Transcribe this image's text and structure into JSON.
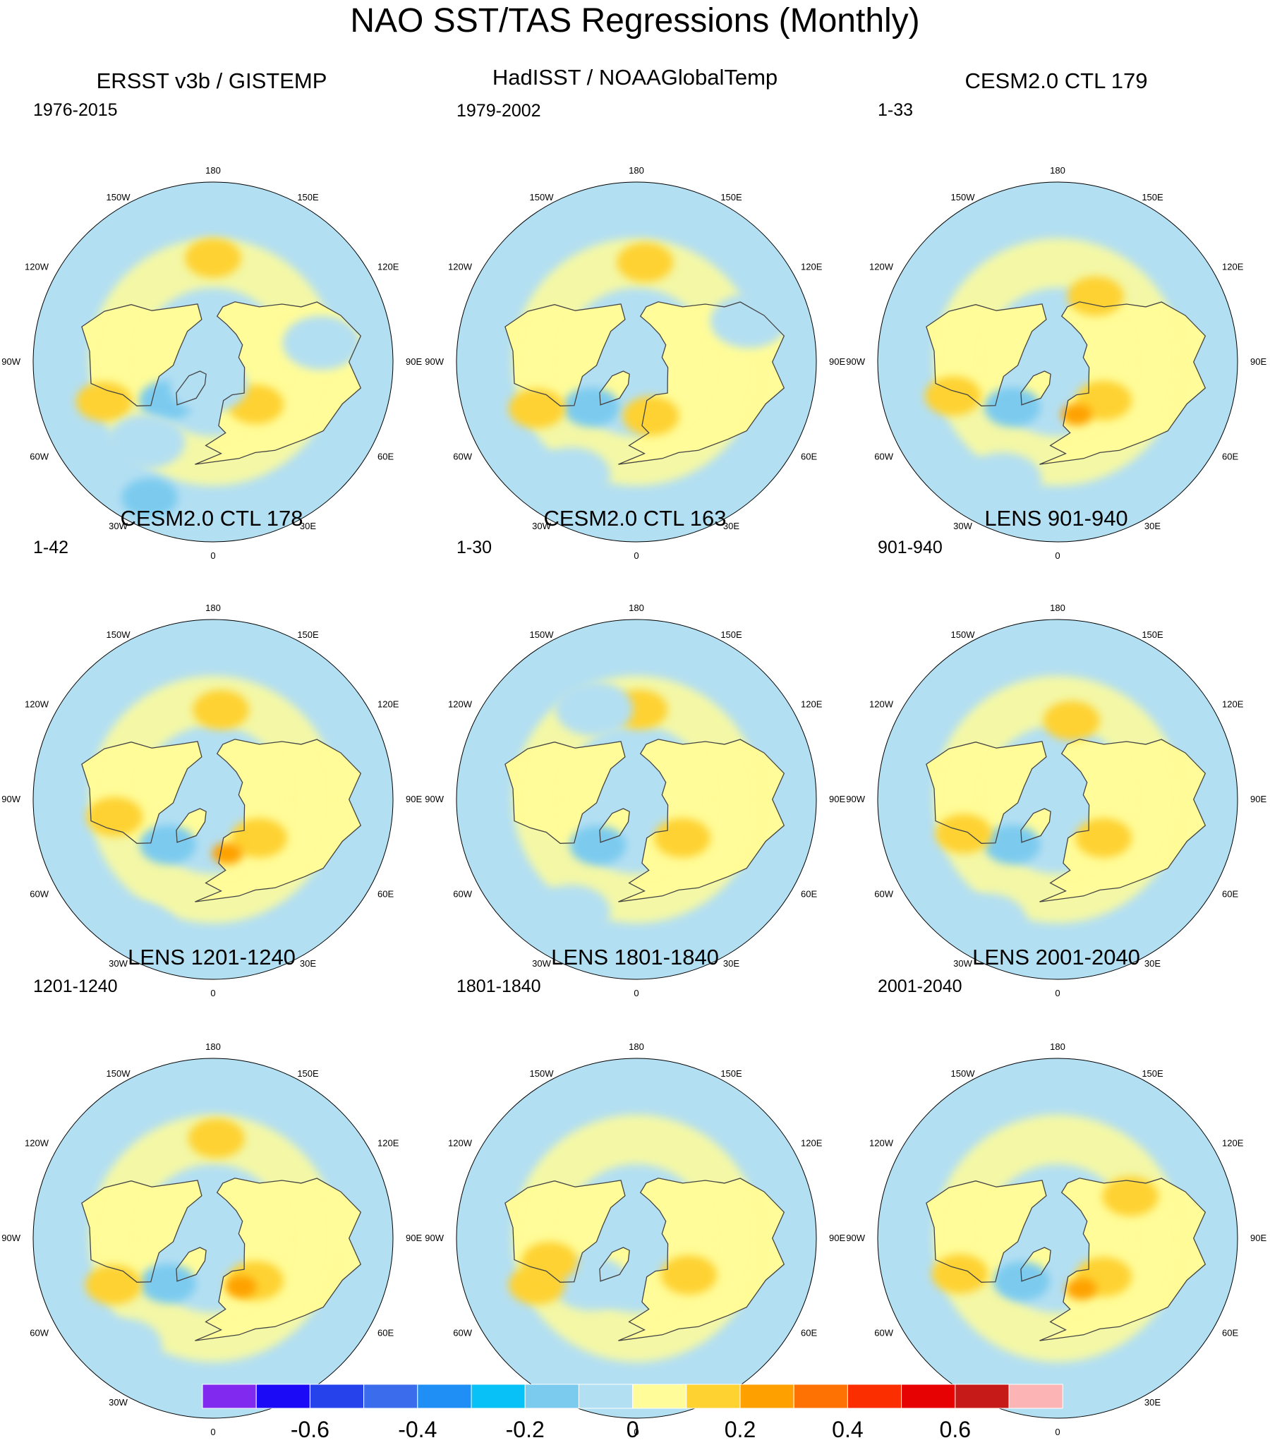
{
  "title": "NAO SST/TAS Regressions (Monthly)",
  "chart_data": [
    {
      "type": "heatmap",
      "projection": "north-polar-stereographic",
      "title": "ERSST v3b / GISTEMP",
      "period": "1976-2015",
      "anomalies": [
        {
          "sign": "warm",
          "strength": 1,
          "lon": 180,
          "lat": 38
        },
        {
          "sign": "cold",
          "strength": 1,
          "lon": -50,
          "lat": 60
        },
        {
          "sign": "warm",
          "strength": 1,
          "lon": -70,
          "lat": 32
        },
        {
          "sign": "warm",
          "strength": 1,
          "lon": 45,
          "lat": 60
        },
        {
          "sign": "cold",
          "strength": 1,
          "lon": -25,
          "lat": 15
        },
        {
          "sign": "cool",
          "strength": 0,
          "lon": -40,
          "lat": 38
        },
        {
          "sign": "cool",
          "strength": 0,
          "lon": 100,
          "lat": 35
        },
        {
          "sign": "cool",
          "strength": 0,
          "lon": -10,
          "lat": 78
        }
      ]
    },
    {
      "type": "heatmap",
      "projection": "north-polar-stereographic",
      "title": "HadISST / NOAAGlobalTemp",
      "period": "1979-2002",
      "anomalies": [
        {
          "sign": "warm",
          "strength": 1,
          "lon": 175,
          "lat": 40
        },
        {
          "sign": "cold",
          "strength": 1,
          "lon": -45,
          "lat": 58
        },
        {
          "sign": "warm",
          "strength": 1,
          "lon": -65,
          "lat": 35
        },
        {
          "sign": "warm",
          "strength": 1,
          "lon": 15,
          "lat": 62
        },
        {
          "sign": "cool",
          "strength": 0,
          "lon": -30,
          "lat": 25
        },
        {
          "sign": "cool",
          "strength": 0,
          "lon": 110,
          "lat": 30
        }
      ]
    },
    {
      "type": "heatmap",
      "projection": "north-polar-stereographic",
      "title": "CESM2.0 CTL 179",
      "period": "1-33",
      "anomalies": [
        {
          "sign": "warm",
          "strength": 1,
          "lon": 150,
          "lat": 52
        },
        {
          "sign": "cold",
          "strength": 1,
          "lon": -45,
          "lat": 58
        },
        {
          "sign": "warm",
          "strength": 1,
          "lon": -72,
          "lat": 35
        },
        {
          "sign": "warm",
          "strength": 1,
          "lon": 50,
          "lat": 60
        },
        {
          "sign": "warm",
          "strength": 2,
          "lon": 20,
          "lat": 62
        },
        {
          "sign": "cool",
          "strength": 0,
          "lon": -25,
          "lat": 25
        }
      ]
    },
    {
      "type": "heatmap",
      "projection": "north-polar-stereographic",
      "title": "CESM2.0 CTL 178",
      "period": "1-42",
      "anomalies": [
        {
          "sign": "warm",
          "strength": 1,
          "lon": 175,
          "lat": 45
        },
        {
          "sign": "cold",
          "strength": 1,
          "lon": -45,
          "lat": 58
        },
        {
          "sign": "warm",
          "strength": 1,
          "lon": -80,
          "lat": 40
        },
        {
          "sign": "warm",
          "strength": 1,
          "lon": 50,
          "lat": 60
        },
        {
          "sign": "warm",
          "strength": 2,
          "lon": 15,
          "lat": 62
        },
        {
          "sign": "cool",
          "strength": 0,
          "lon": -30,
          "lat": 15
        }
      ]
    },
    {
      "type": "heatmap",
      "projection": "north-polar-stereographic",
      "title": "CESM2.0 CTL 163",
      "period": "1-30",
      "anomalies": [
        {
          "sign": "warm",
          "strength": 1,
          "lon": 178,
          "lat": 45
        },
        {
          "sign": "cold",
          "strength": 1,
          "lon": -40,
          "lat": 60
        },
        {
          "sign": "warm",
          "strength": 1,
          "lon": 50,
          "lat": 60
        },
        {
          "sign": "cool",
          "strength": 0,
          "lon": -155,
          "lat": 40
        },
        {
          "sign": "cool",
          "strength": 0,
          "lon": -30,
          "lat": 25
        }
      ]
    },
    {
      "type": "heatmap",
      "projection": "north-polar-stereographic",
      "title": "LENS 901-940",
      "period": "901-940",
      "anomalies": [
        {
          "sign": "warm",
          "strength": 1,
          "lon": 170,
          "lat": 50
        },
        {
          "sign": "cold",
          "strength": 1,
          "lon": -45,
          "lat": 58
        },
        {
          "sign": "warm",
          "strength": 1,
          "lon": -70,
          "lat": 40
        },
        {
          "sign": "warm",
          "strength": 1,
          "lon": 50,
          "lat": 60
        },
        {
          "sign": "cool",
          "strength": 0,
          "lon": -30,
          "lat": 20
        }
      ]
    },
    {
      "type": "heatmap",
      "projection": "north-polar-stereographic",
      "title": "LENS 1201-1240",
      "period": "1201-1240",
      "anomalies": [
        {
          "sign": "warm",
          "strength": 1,
          "lon": 178,
          "lat": 40
        },
        {
          "sign": "cold",
          "strength": 1,
          "lon": -45,
          "lat": 58
        },
        {
          "sign": "warm",
          "strength": 1,
          "lon": -65,
          "lat": 35
        },
        {
          "sign": "warm",
          "strength": 1,
          "lon": 45,
          "lat": 60
        },
        {
          "sign": "warm",
          "strength": 2,
          "lon": 30,
          "lat": 62
        },
        {
          "sign": "cool",
          "strength": 0,
          "lon": -40,
          "lat": 20
        }
      ]
    },
    {
      "type": "heatmap",
      "projection": "north-polar-stereographic",
      "title": "LENS 1801-1840",
      "period": "1801-1840",
      "anomalies": [
        {
          "sign": "warm",
          "strength": 1,
          "lon": 55,
          "lat": 58
        },
        {
          "sign": "cool",
          "strength": 0,
          "lon": -45,
          "lat": 58
        },
        {
          "sign": "warm",
          "strength": 1,
          "lon": -65,
          "lat": 35
        },
        {
          "sign": "warm",
          "strength": 1,
          "lon": -75,
          "lat": 45
        }
      ]
    },
    {
      "type": "heatmap",
      "projection": "north-polar-stereographic",
      "title": "LENS 2001-2040",
      "period": "2001-2040",
      "anomalies": [
        {
          "sign": "warm",
          "strength": 1,
          "lon": 50,
          "lat": 60
        },
        {
          "sign": "warm",
          "strength": 2,
          "lon": 25,
          "lat": 62
        },
        {
          "sign": "cold",
          "strength": 1,
          "lon": -40,
          "lat": 62
        },
        {
          "sign": "warm",
          "strength": 1,
          "lon": -70,
          "lat": 38
        },
        {
          "sign": "warm",
          "strength": 1,
          "lon": 120,
          "lat": 48
        }
      ]
    }
  ],
  "map_labels": {
    "lon_labels": [
      "180",
      "150E",
      "120E",
      "90E",
      "60E",
      "30E",
      "0",
      "30W",
      "60W",
      "90W",
      "120W",
      "150W"
    ]
  },
  "colorbar": {
    "colors": [
      "#8229f0",
      "#1a0af5",
      "#2643eb",
      "#3a6ceb",
      "#1f8ff5",
      "#07c1f7",
      "#7bcbef",
      "#b3dff2",
      "#fffc99",
      "#fed231",
      "#fea100",
      "#fe7103",
      "#fb2e00",
      "#e60103",
      "#c61a18",
      "#fcb4b4"
    ],
    "tick_values": [
      -0.6,
      -0.4,
      -0.2,
      0,
      0.2,
      0.4,
      0.6
    ],
    "tick_labels": [
      "-0.6",
      "-0.4",
      "-0.2",
      "0",
      "0.2",
      "0.4",
      "0.6"
    ]
  },
  "colors": {
    "ocean_default": "#b3dff2",
    "coast": "#444444"
  }
}
